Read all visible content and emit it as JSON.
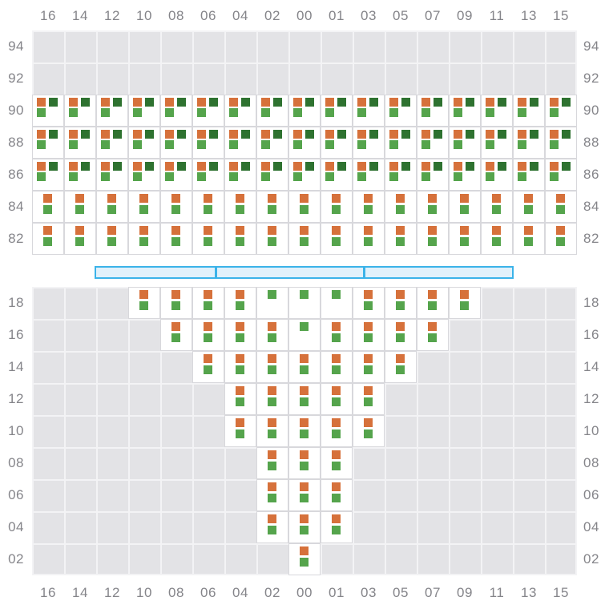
{
  "colors": {
    "orange": "#d6713b",
    "green": "#55a44c",
    "dark_green": "#2e7230",
    "grid_background": "#e3e3e6",
    "grid_line": "#f3f3f5",
    "cell_background": "#ffffff",
    "cell_border": "#d8d8dc",
    "axis_label": "#85858a",
    "scrollbar_border": "#3bb3e9",
    "scrollbar_fill": "#e1f1fb"
  },
  "scrollbar": {
    "segments": 3,
    "grip_fractions": [
      0.287,
      0.641
    ]
  },
  "chart_data": {
    "type": "heatmap",
    "title": "",
    "grid": true,
    "x_labels_top": [
      "16",
      "14",
      "12",
      "10",
      "08",
      "06",
      "04",
      "02",
      "00",
      "01",
      "03",
      "05",
      "07",
      "09",
      "11",
      "13",
      "15"
    ],
    "x_labels_bottom": [
      "16",
      "14",
      "12",
      "10",
      "08",
      "06",
      "04",
      "02",
      "00",
      "01",
      "03",
      "05",
      "07",
      "09",
      "11",
      "13",
      "15"
    ],
    "cell_types": {
      "triple": [
        "orange top-left",
        "dark_green top-right",
        "green bottom-left"
      ],
      "pair": [
        "orange top-center",
        "green below-center"
      ],
      "green": [
        "green top-center"
      ]
    },
    "upper_panel": {
      "y_labels": [
        "94",
        "92",
        "90",
        "88",
        "86",
        "84",
        "82"
      ],
      "y_labels_shown_both_sides": true,
      "rows": [
        {
          "y": "94",
          "cells": []
        },
        {
          "y": "92",
          "cells": []
        },
        {
          "y": "90",
          "cells": [
            [
              "16",
              "triple"
            ],
            [
              "14",
              "triple"
            ],
            [
              "12",
              "triple"
            ],
            [
              "10",
              "triple"
            ],
            [
              "08",
              "triple"
            ],
            [
              "06",
              "triple"
            ],
            [
              "04",
              "triple"
            ],
            [
              "02",
              "triple"
            ],
            [
              "00",
              "triple"
            ],
            [
              "01",
              "triple"
            ],
            [
              "03",
              "triple"
            ],
            [
              "05",
              "triple"
            ],
            [
              "07",
              "triple"
            ],
            [
              "09",
              "triple"
            ],
            [
              "11",
              "triple"
            ],
            [
              "13",
              "triple"
            ],
            [
              "15",
              "triple"
            ]
          ]
        },
        {
          "y": "88",
          "cells": [
            [
              "16",
              "triple"
            ],
            [
              "14",
              "triple"
            ],
            [
              "12",
              "triple"
            ],
            [
              "10",
              "triple"
            ],
            [
              "08",
              "triple"
            ],
            [
              "06",
              "triple"
            ],
            [
              "04",
              "triple"
            ],
            [
              "02",
              "triple"
            ],
            [
              "00",
              "triple"
            ],
            [
              "01",
              "triple"
            ],
            [
              "03",
              "triple"
            ],
            [
              "05",
              "triple"
            ],
            [
              "07",
              "triple"
            ],
            [
              "09",
              "triple"
            ],
            [
              "11",
              "triple"
            ],
            [
              "13",
              "triple"
            ],
            [
              "15",
              "triple"
            ]
          ]
        },
        {
          "y": "86",
          "cells": [
            [
              "16",
              "triple"
            ],
            [
              "14",
              "triple"
            ],
            [
              "12",
              "triple"
            ],
            [
              "10",
              "triple"
            ],
            [
              "08",
              "triple"
            ],
            [
              "06",
              "triple"
            ],
            [
              "04",
              "triple"
            ],
            [
              "02",
              "triple"
            ],
            [
              "00",
              "triple"
            ],
            [
              "01",
              "triple"
            ],
            [
              "03",
              "triple"
            ],
            [
              "05",
              "triple"
            ],
            [
              "07",
              "triple"
            ],
            [
              "09",
              "triple"
            ],
            [
              "11",
              "triple"
            ],
            [
              "13",
              "triple"
            ],
            [
              "15",
              "triple"
            ]
          ]
        },
        {
          "y": "84",
          "cells": [
            [
              "16",
              "pair"
            ],
            [
              "14",
              "pair"
            ],
            [
              "12",
              "pair"
            ],
            [
              "10",
              "pair"
            ],
            [
              "08",
              "pair"
            ],
            [
              "06",
              "pair"
            ],
            [
              "04",
              "pair"
            ],
            [
              "02",
              "pair"
            ],
            [
              "00",
              "pair"
            ],
            [
              "01",
              "pair"
            ],
            [
              "03",
              "pair"
            ],
            [
              "05",
              "pair"
            ],
            [
              "07",
              "pair"
            ],
            [
              "09",
              "pair"
            ],
            [
              "11",
              "pair"
            ],
            [
              "13",
              "pair"
            ],
            [
              "15",
              "pair"
            ]
          ]
        },
        {
          "y": "82",
          "cells": [
            [
              "16",
              "pair"
            ],
            [
              "14",
              "pair"
            ],
            [
              "12",
              "pair"
            ],
            [
              "10",
              "pair"
            ],
            [
              "08",
              "pair"
            ],
            [
              "06",
              "pair"
            ],
            [
              "04",
              "pair"
            ],
            [
              "02",
              "pair"
            ],
            [
              "00",
              "pair"
            ],
            [
              "01",
              "pair"
            ],
            [
              "03",
              "pair"
            ],
            [
              "05",
              "pair"
            ],
            [
              "07",
              "pair"
            ],
            [
              "09",
              "pair"
            ],
            [
              "11",
              "pair"
            ],
            [
              "13",
              "pair"
            ],
            [
              "15",
              "pair"
            ]
          ]
        }
      ]
    },
    "lower_panel": {
      "y_labels": [
        "18",
        "16",
        "14",
        "12",
        "10",
        "08",
        "06",
        "04",
        "02"
      ],
      "y_labels_shown_both_sides": true,
      "rows": [
        {
          "y": "18",
          "cells": [
            [
              "10",
              "pair"
            ],
            [
              "08",
              "pair"
            ],
            [
              "06",
              "pair"
            ],
            [
              "04",
              "pair"
            ],
            [
              "02",
              "green"
            ],
            [
              "00",
              "green"
            ],
            [
              "01",
              "green"
            ],
            [
              "03",
              "pair"
            ],
            [
              "05",
              "pair"
            ],
            [
              "07",
              "pair"
            ],
            [
              "09",
              "pair"
            ]
          ]
        },
        {
          "y": "16",
          "cells": [
            [
              "08",
              "pair"
            ],
            [
              "06",
              "pair"
            ],
            [
              "04",
              "pair"
            ],
            [
              "02",
              "pair"
            ],
            [
              "00",
              "green"
            ],
            [
              "01",
              "pair"
            ],
            [
              "03",
              "pair"
            ],
            [
              "05",
              "pair"
            ],
            [
              "07",
              "pair"
            ]
          ]
        },
        {
          "y": "14",
          "cells": [
            [
              "06",
              "pair"
            ],
            [
              "04",
              "pair"
            ],
            [
              "02",
              "pair"
            ],
            [
              "00",
              "pair"
            ],
            [
              "01",
              "pair"
            ],
            [
              "03",
              "pair"
            ],
            [
              "05",
              "pair"
            ]
          ]
        },
        {
          "y": "12",
          "cells": [
            [
              "04",
              "pair"
            ],
            [
              "02",
              "pair"
            ],
            [
              "00",
              "pair"
            ],
            [
              "01",
              "pair"
            ],
            [
              "03",
              "pair"
            ]
          ]
        },
        {
          "y": "10",
          "cells": [
            [
              "04",
              "pair"
            ],
            [
              "02",
              "pair"
            ],
            [
              "00",
              "pair"
            ],
            [
              "01",
              "pair"
            ],
            [
              "03",
              "pair"
            ]
          ]
        },
        {
          "y": "08",
          "cells": [
            [
              "02",
              "pair"
            ],
            [
              "00",
              "pair"
            ],
            [
              "01",
              "pair"
            ]
          ]
        },
        {
          "y": "06",
          "cells": [
            [
              "02",
              "pair"
            ],
            [
              "00",
              "pair"
            ],
            [
              "01",
              "pair"
            ]
          ]
        },
        {
          "y": "04",
          "cells": [
            [
              "02",
              "pair"
            ],
            [
              "00",
              "pair"
            ],
            [
              "01",
              "pair"
            ]
          ]
        },
        {
          "y": "02",
          "cells": [
            [
              "00",
              "pair"
            ]
          ]
        }
      ]
    }
  }
}
